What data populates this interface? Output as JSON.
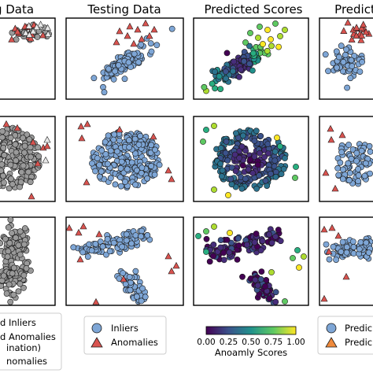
{
  "figure": {
    "columns": [
      {
        "title": "g Data"
      },
      {
        "title": "Testing Data"
      },
      {
        "title": "Predicted Scores"
      },
      {
        "title": "Predict"
      }
    ],
    "rows": [
      "blob",
      "cloud",
      "two_clusters"
    ]
  },
  "colors": {
    "inlier_fill": "#7ea6d6",
    "inlier_train_fill": "#9a9a9a",
    "anomaly_fill": "#d9534f",
    "anomaly_train_fill": "#e8e8e8",
    "orange_marker": "#f08a3c",
    "stroke": "#1a1a1a"
  },
  "legends": {
    "col1": {
      "items": [
        {
          "label": "d Inliers"
        },
        {
          "label": "d Anomalies"
        },
        {
          "label": "ination)"
        },
        {
          "label": "nomalies"
        }
      ]
    },
    "col2": {
      "items": [
        {
          "label": "Inliers",
          "marker": "circle"
        },
        {
          "label": "Anomalies",
          "marker": "triangle"
        }
      ]
    },
    "col3": {
      "colorbar_label": "Anoamly Scores",
      "ticks": [
        "0.00",
        "0.25",
        "0.50",
        "0.75",
        "1.00"
      ],
      "colormap": "viridis"
    },
    "col4": {
      "items": [
        {
          "label": "Predic",
          "marker": "circle"
        },
        {
          "label": "Predic",
          "marker": "triangle"
        }
      ]
    }
  },
  "chart_data": [
    {
      "type": "scatter",
      "panel": "row1-col1",
      "title": "g Data",
      "series": [
        {
          "name": "Inliers",
          "points": "cluster"
        },
        {
          "name": "Anomalies",
          "points": "scattered"
        }
      ]
    },
    {
      "type": "scatter",
      "panel": "row1-col2",
      "title": "Testing Data"
    },
    {
      "type": "scatter",
      "panel": "row1-col3",
      "title": "Predicted Scores",
      "color_scale": [
        0,
        1
      ]
    },
    {
      "type": "scatter",
      "panel": "row1-col4",
      "title": "Predict"
    },
    {
      "type": "scatter",
      "panel": "row2-col1"
    },
    {
      "type": "scatter",
      "panel": "row2-col2"
    },
    {
      "type": "scatter",
      "panel": "row2-col3",
      "color_scale": [
        0,
        1
      ]
    },
    {
      "type": "scatter",
      "panel": "row2-col4"
    },
    {
      "type": "scatter",
      "panel": "row3-col1"
    },
    {
      "type": "scatter",
      "panel": "row3-col2"
    },
    {
      "type": "scatter",
      "panel": "row3-col3",
      "color_scale": [
        0,
        1
      ]
    },
    {
      "type": "scatter",
      "panel": "row3-col4"
    }
  ]
}
